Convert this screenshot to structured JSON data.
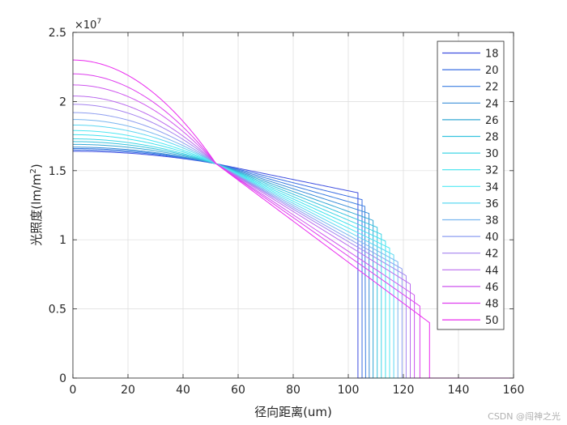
{
  "chart_data": {
    "type": "line",
    "xlabel": "径向距离(um)",
    "ylabel_main": "光照度(lm/m",
    "ylabel_sup": "2",
    "ylabel_end": ")",
    "exponent_base": "×10",
    "exponent_power": "7",
    "xlim": [
      0,
      160
    ],
    "ylim": [
      0,
      2.5
    ],
    "xticks": [
      "0",
      "20",
      "40",
      "60",
      "80",
      "100",
      "120",
      "140",
      "160"
    ],
    "yticks": [
      "0",
      "0.5",
      "1",
      "1.5",
      "2",
      "2.5"
    ],
    "grid": true,
    "legend_position": "top-right",
    "series": [
      {
        "name": "18",
        "color": "#3f4fe0",
        "center": 1.64,
        "cross": 1.55,
        "edge_value": 1.34,
        "cutoff": 103.5
      },
      {
        "name": "20",
        "color": "#3a6ee3",
        "center": 1.65,
        "cross": 1.55,
        "edge_value": 1.29,
        "cutoff": 105.0
      },
      {
        "name": "22",
        "color": "#3a7ee0",
        "center": 1.66,
        "cross": 1.55,
        "edge_value": 1.24,
        "cutoff": 106.3
      },
      {
        "name": "24",
        "color": "#3b8fd8",
        "center": 1.67,
        "cross": 1.55,
        "edge_value": 1.19,
        "cutoff": 107.6
      },
      {
        "name": "26",
        "color": "#34a8d4",
        "center": 1.69,
        "cross": 1.55,
        "edge_value": 1.14,
        "cutoff": 109.0
      },
      {
        "name": "28",
        "color": "#36c3de",
        "center": 1.71,
        "cross": 1.55,
        "edge_value": 1.09,
        "cutoff": 110.5
      },
      {
        "name": "30",
        "color": "#40d6e6",
        "center": 1.73,
        "cross": 1.55,
        "edge_value": 1.04,
        "cutoff": 112.0
      },
      {
        "name": "32",
        "color": "#3fe2ee",
        "center": 1.76,
        "cross": 1.55,
        "edge_value": 0.99,
        "cutoff": 113.5
      },
      {
        "name": "34",
        "color": "#4ee8f3",
        "center": 1.79,
        "cross": 1.55,
        "edge_value": 0.94,
        "cutoff": 115.0
      },
      {
        "name": "36",
        "color": "#5cd8f2",
        "center": 1.83,
        "cross": 1.55,
        "edge_value": 0.89,
        "cutoff": 116.5
      },
      {
        "name": "38",
        "color": "#7ab6f0",
        "center": 1.87,
        "cross": 1.55,
        "edge_value": 0.84,
        "cutoff": 118.0
      },
      {
        "name": "40",
        "color": "#8e9ef0",
        "center": 1.92,
        "cross": 1.55,
        "edge_value": 0.79,
        "cutoff": 119.5
      },
      {
        "name": "42",
        "color": "#a583ef",
        "center": 1.98,
        "cross": 1.55,
        "edge_value": 0.74,
        "cutoff": 121.0
      },
      {
        "name": "44",
        "color": "#bb6bee",
        "center": 2.04,
        "cross": 1.55,
        "edge_value": 0.68,
        "cutoff": 122.5
      },
      {
        "name": "46",
        "color": "#ce55ee",
        "center": 2.12,
        "cross": 1.55,
        "edge_value": 0.6,
        "cutoff": 124.0
      },
      {
        "name": "48",
        "color": "#de3eee",
        "center": 2.2,
        "cross": 1.55,
        "edge_value": 0.52,
        "cutoff": 126.0
      },
      {
        "name": "50",
        "color": "#ea2aee",
        "center": 2.3,
        "cross": 1.55,
        "edge_value": 0.4,
        "cutoff": 129.5
      }
    ]
  },
  "watermark": "CSDN @闯神之光"
}
